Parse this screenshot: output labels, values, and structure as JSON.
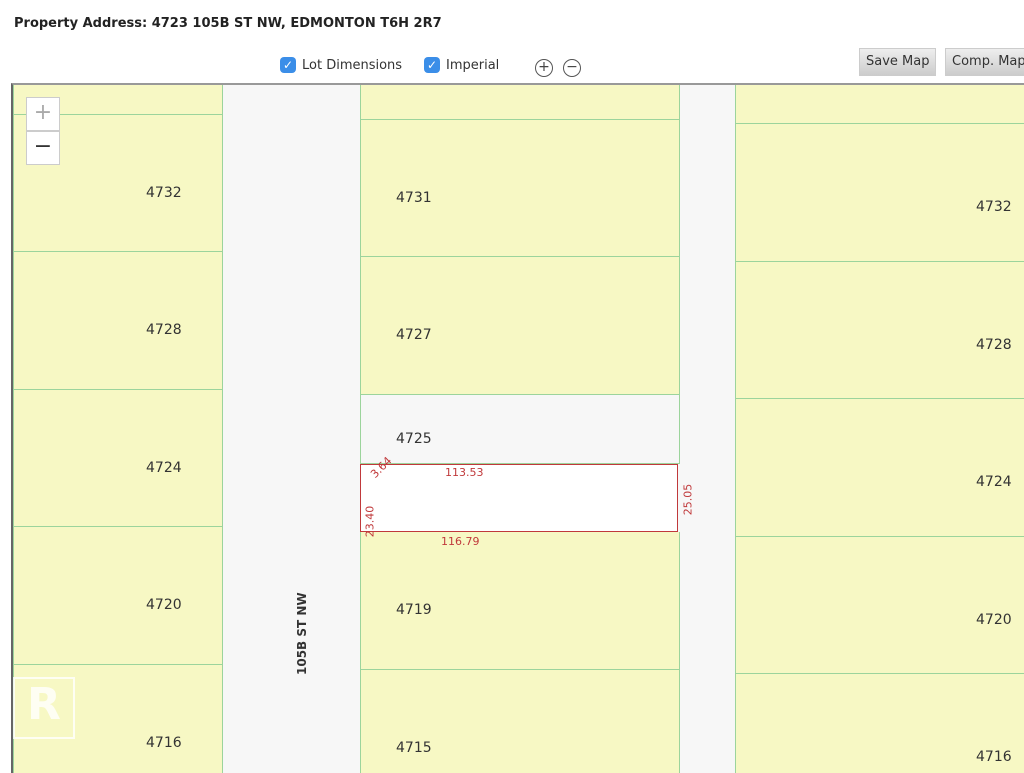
{
  "header": {
    "address": "Property Address: 4723 105B ST NW, EDMONTON T6H 2R7"
  },
  "controls": {
    "lot_dimensions": "Lot Dimensions",
    "lot_dimensions_checked": true,
    "imperial": "Imperial",
    "imperial_checked": true,
    "zoom_in": "+",
    "zoom_out": "−",
    "save_map": "Save Map",
    "comp_map": "Comp. Map"
  },
  "map": {
    "zoom_in": "+",
    "zoom_out": "−",
    "street": "105B ST NW",
    "left_lots": [
      "4732",
      "4728",
      "4724",
      "4720",
      "4716"
    ],
    "middle_lots": [
      "4731",
      "4727",
      "4725",
      "4719",
      "4715"
    ],
    "right_lots": [
      "4732",
      "4728",
      "4724",
      "4720",
      "4716"
    ],
    "subject": {
      "top": "113.53",
      "bottom": "116.79",
      "left": "23.40",
      "corner": "3.64",
      "right": "25.05",
      "color": "#c0393b"
    },
    "watermark": "REALTOR"
  }
}
